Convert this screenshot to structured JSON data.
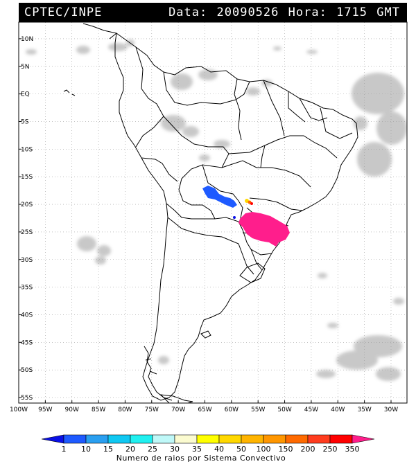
{
  "header": {
    "source": "CPTEC/INPE",
    "date_label": "Data:",
    "date": "20090526",
    "hour_label": "Hora:",
    "hour": "1715",
    "tz": "GMT"
  },
  "map": {
    "lon_min": -100,
    "lon_max": -27,
    "lat_min": -56,
    "lat_max": 13,
    "lat_ticks": [
      {
        "v": 10,
        "label": "10N"
      },
      {
        "v": 5,
        "label": "5N"
      },
      {
        "v": 0,
        "label": "EQ"
      },
      {
        "v": -5,
        "label": "5S"
      },
      {
        "v": -10,
        "label": "10S"
      },
      {
        "v": -15,
        "label": "15S"
      },
      {
        "v": -20,
        "label": "20S"
      },
      {
        "v": -25,
        "label": "25S"
      },
      {
        "v": -30,
        "label": "30S"
      },
      {
        "v": -35,
        "label": "35S"
      },
      {
        "v": -40,
        "label": "40S"
      },
      {
        "v": -45,
        "label": "45S"
      },
      {
        "v": -50,
        "label": "50S"
      },
      {
        "v": -55,
        "label": "55S"
      }
    ],
    "lon_ticks": [
      {
        "v": -100,
        "label": "100W"
      },
      {
        "v": -95,
        "label": "95W"
      },
      {
        "v": -90,
        "label": "90W"
      },
      {
        "v": -85,
        "label": "85W"
      },
      {
        "v": -80,
        "label": "80W"
      },
      {
        "v": -75,
        "label": "75W"
      },
      {
        "v": -70,
        "label": "70W"
      },
      {
        "v": -65,
        "label": "65W"
      },
      {
        "v": -60,
        "label": "60W"
      },
      {
        "v": -55,
        "label": "55W"
      },
      {
        "v": -50,
        "label": "50W"
      },
      {
        "v": -45,
        "label": "45W"
      },
      {
        "v": -40,
        "label": "40W"
      },
      {
        "v": -35,
        "label": "35W"
      },
      {
        "v": -30,
        "label": "30W"
      }
    ],
    "colors": {
      "cloud": "#c8c8c8",
      "border": "#000000",
      "gridline": "#9a9a9a"
    }
  },
  "colorbar": {
    "title": "Numero de raios por Sistema Convectivo",
    "labels": [
      "1",
      "10",
      "15",
      "20",
      "25",
      "30",
      "35",
      "40",
      "50",
      "100",
      "150",
      "200",
      "250",
      "350"
    ],
    "colors": [
      "#0a10e6",
      "#1e5aff",
      "#2a9ff0",
      "#10c8f2",
      "#20f0f0",
      "#bff8f8",
      "#fbfbd0",
      "#ffff00",
      "#ffd800",
      "#ffb400",
      "#ff9600",
      "#ff6a00",
      "#ff3c1e",
      "#ff0000",
      "#ff1e8c"
    ]
  }
}
